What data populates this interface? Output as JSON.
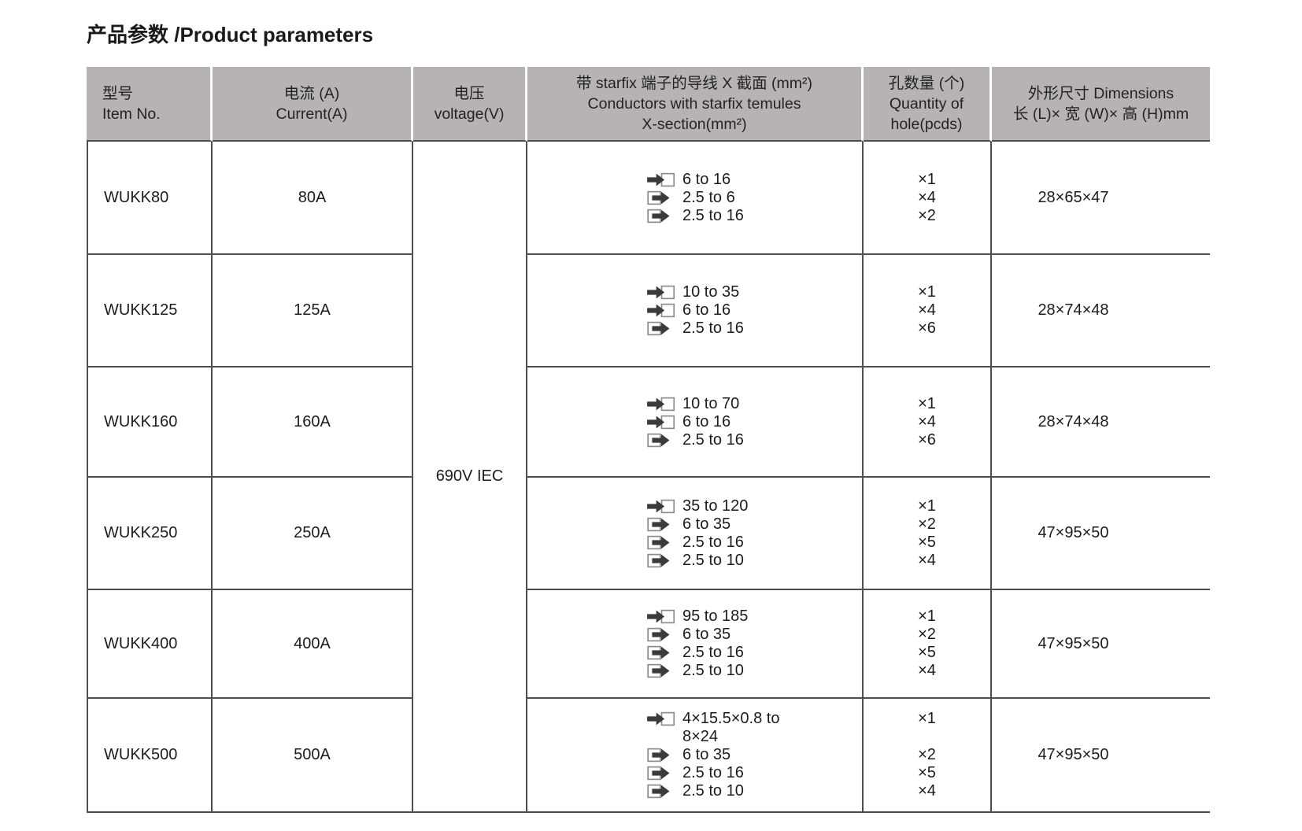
{
  "title": "产品参数 /Product parameters",
  "colors": {
    "header_bg": "#b6b2b6",
    "border": "#4d4d4d",
    "arrow": "#3d3a39",
    "box_stroke": "#8c8c8c",
    "text": "#1c1c1c"
  },
  "table": {
    "headers": [
      {
        "id": "item-no",
        "align": "left",
        "lines": [
          "型号",
          "Item No."
        ]
      },
      {
        "id": "current",
        "align": "center",
        "lines": [
          "电流 (A)",
          "Current(A)"
        ]
      },
      {
        "id": "voltage",
        "align": "center",
        "lines": [
          "电压",
          "voltage(V)"
        ]
      },
      {
        "id": "conductors",
        "align": "center",
        "lines": [
          "带 starfix 端子的导线 X 截面 (mm²)",
          "Conductors with starfix temules",
          "X-section(mm²)"
        ]
      },
      {
        "id": "hole-quantity",
        "align": "center",
        "lines": [
          "孔数量 (个)",
          "Quantity of",
          "hole(pcds)"
        ]
      },
      {
        "id": "dimensions",
        "align": "center",
        "lines": [
          "外形尺寸 Dimensions",
          "长 (L)× 宽 (W)× 高 (H)mm"
        ]
      }
    ],
    "voltage_merged": "690V IEC",
    "rows": [
      {
        "item_no": "WUKK80",
        "current": "80A",
        "dimensions": "28×65×47",
        "conductors": [
          {
            "icon": "arrow-into-box",
            "lines": [
              "6 to 16"
            ],
            "qty": "×1"
          },
          {
            "icon": "box-arrow-out",
            "lines": [
              "2.5 to 6"
            ],
            "qty": "×4"
          },
          {
            "icon": "box-arrow-out",
            "lines": [
              "2.5 to 16"
            ],
            "qty": "×2"
          }
        ]
      },
      {
        "item_no": "WUKK125",
        "current": "125A",
        "dimensions": "28×74×48",
        "conductors": [
          {
            "icon": "arrow-into-box",
            "lines": [
              "10 to 35"
            ],
            "qty": "×1"
          },
          {
            "icon": "arrow-into-box",
            "lines": [
              "6 to 16"
            ],
            "qty": "×4"
          },
          {
            "icon": "box-arrow-out",
            "lines": [
              "2.5 to 16"
            ],
            "qty": "×6"
          }
        ]
      },
      {
        "item_no": "WUKK160",
        "current": "160A",
        "dimensions": "28×74×48",
        "conductors": [
          {
            "icon": "arrow-into-box",
            "lines": [
              "10 to 70"
            ],
            "qty": "×1"
          },
          {
            "icon": "arrow-into-box",
            "lines": [
              "6 to 16"
            ],
            "qty": "×4"
          },
          {
            "icon": "box-arrow-out",
            "lines": [
              "2.5 to 16"
            ],
            "qty": "×6"
          }
        ]
      },
      {
        "item_no": "WUKK250",
        "current": "250A",
        "dimensions": "47×95×50",
        "conductors": [
          {
            "icon": "arrow-into-box",
            "lines": [
              "35 to 120"
            ],
            "qty": "×1"
          },
          {
            "icon": "box-arrow-out",
            "lines": [
              "6 to 35"
            ],
            "qty": "×2"
          },
          {
            "icon": "box-arrow-out",
            "lines": [
              "2.5 to 16"
            ],
            "qty": "×5"
          },
          {
            "icon": "box-arrow-out",
            "lines": [
              "2.5 to 10"
            ],
            "qty": "×4"
          }
        ]
      },
      {
        "item_no": "WUKK400",
        "current": "400A",
        "dimensions": "47×95×50",
        "conductors": [
          {
            "icon": "arrow-into-box",
            "lines": [
              "95 to 185"
            ],
            "qty": "×1"
          },
          {
            "icon": "box-arrow-out",
            "lines": [
              "6 to 35"
            ],
            "qty": "×2"
          },
          {
            "icon": "box-arrow-out",
            "lines": [
              "2.5 to 16"
            ],
            "qty": "×5"
          },
          {
            "icon": "box-arrow-out",
            "lines": [
              "2.5 to 10"
            ],
            "qty": "×4"
          }
        ]
      },
      {
        "item_no": "WUKK500",
        "current": "500A",
        "dimensions": "47×95×50",
        "conductors": [
          {
            "icon": "arrow-into-box",
            "lines": [
              "4×15.5×0.8 to",
              "8×24"
            ],
            "qty": "×1"
          },
          {
            "icon": "box-arrow-out",
            "lines": [
              "6 to 35"
            ],
            "qty": "×2"
          },
          {
            "icon": "box-arrow-out",
            "lines": [
              "2.5 to 16"
            ],
            "qty": "×5"
          },
          {
            "icon": "box-arrow-out",
            "lines": [
              "2.5 to 10"
            ],
            "qty": "×4"
          }
        ]
      }
    ]
  }
}
